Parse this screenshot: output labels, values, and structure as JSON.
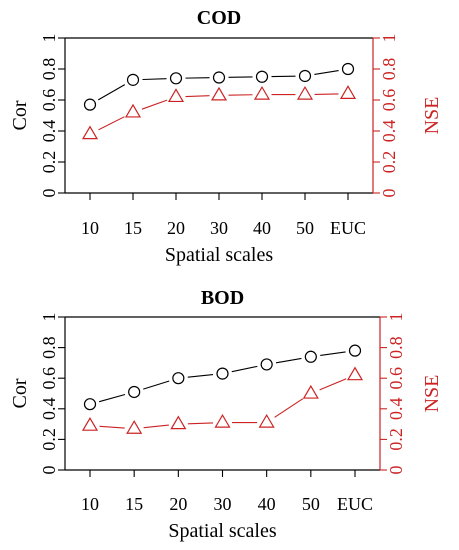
{
  "chart_data": [
    {
      "type": "line",
      "title": "COD",
      "xlabel": "Spatial scales",
      "categories": [
        "10",
        "15",
        "20",
        "30",
        "40",
        "50",
        "EUC"
      ],
      "y_left": {
        "label": "Cor",
        "ticks": [
          "0",
          "0.2",
          "0.4",
          "0.6",
          "0.8",
          "1"
        ],
        "range": [
          0,
          1
        ],
        "color": "#000000"
      },
      "y_right": {
        "label": "NSE",
        "ticks": [
          "0",
          "0.2",
          "0.4",
          "0.6",
          "0.8",
          "1"
        ],
        "range": [
          0,
          1
        ],
        "color": "#cc2222"
      },
      "series": [
        {
          "axis": "left",
          "marker": "circle",
          "color": "#000000",
          "values": [
            0.57,
            0.73,
            0.74,
            0.745,
            0.75,
            0.755,
            0.8
          ]
        },
        {
          "axis": "right",
          "marker": "triangle",
          "color": "#cc2222",
          "values": [
            0.38,
            0.52,
            0.62,
            0.63,
            0.635,
            0.635,
            0.64
          ]
        }
      ]
    },
    {
      "type": "line",
      "title": "BOD",
      "xlabel": "Spatial scales",
      "categories": [
        "10",
        "15",
        "20",
        "30",
        "40",
        "50",
        "EUC"
      ],
      "y_left": {
        "label": "Cor",
        "ticks": [
          "0",
          "0.2",
          "0.4",
          "0.6",
          "0.8",
          "1"
        ],
        "range": [
          0,
          1
        ],
        "color": "#000000"
      },
      "y_right": {
        "label": "NSE",
        "ticks": [
          "0",
          "0.2",
          "0.4",
          "0.6",
          "0.8",
          "1"
        ],
        "range": [
          0,
          1
        ],
        "color": "#cc2222"
      },
      "series": [
        {
          "axis": "left",
          "marker": "circle",
          "color": "#000000",
          "values": [
            0.43,
            0.51,
            0.6,
            0.63,
            0.69,
            0.74,
            0.78
          ]
        },
        {
          "axis": "right",
          "marker": "triangle",
          "color": "#cc2222",
          "values": [
            0.29,
            0.27,
            0.3,
            0.31,
            0.31,
            0.5,
            0.62
          ]
        }
      ]
    }
  ]
}
